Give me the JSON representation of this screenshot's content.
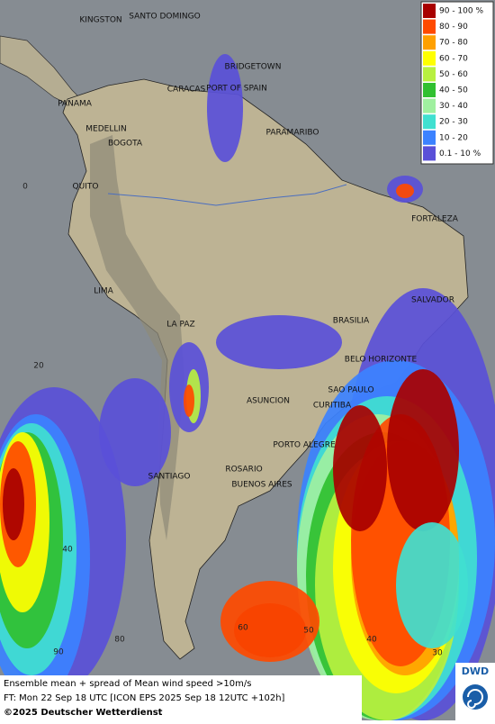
{
  "map": {
    "cities": [
      "KINGSTON",
      "SANTO DOMINGO",
      "BRIDGETOWN",
      "CARACAS",
      "PORT OF SPAIN",
      "PANAMA",
      "MEDELLIN",
      "BOGOTA",
      "PARAMARIBO",
      "QUITO",
      "FORTALEZA",
      "LIMA",
      "SALVADOR",
      "BRASILIA",
      "LA PAZ",
      "BELO HORIZONTE",
      "SAO PAULO",
      "CURITIBA",
      "ASUNCION",
      "PORTO ALEGRE",
      "SANTIAGO",
      "ROSARIO",
      "BUENOS AIRES"
    ],
    "grid_labels": [
      "0",
      "20",
      "40",
      "90",
      "80",
      "60",
      "50",
      "40",
      "30"
    ]
  },
  "legend": {
    "items": [
      {
        "label": "90 - 100 %",
        "color": "#a80000"
      },
      {
        "label": "80 - 90",
        "color": "#ff4a00"
      },
      {
        "label": "70 - 80",
        "color": "#ffa000"
      },
      {
        "label": "60 - 70",
        "color": "#ffff00"
      },
      {
        "label": "50 - 60",
        "color": "#b8f040"
      },
      {
        "label": "40 - 50",
        "color": "#30c030"
      },
      {
        "label": "30 - 40",
        "color": "#a0f0a0"
      },
      {
        "label": "20 - 30",
        "color": "#40e0d0"
      },
      {
        "label": "10 - 20",
        "color": "#3c82ff"
      },
      {
        "label": "0.1 - 10 %",
        "color": "#5a50d8"
      }
    ]
  },
  "footer": {
    "lines": [
      "Ensemble mean + spread of Mean wind speed >10m/s",
      "FT: Mon 22 Sep 18 UTC [ICON EPS 2025 Sep 18 12UTC +102h]",
      "©2025 Deutscher Wetterdienst"
    ]
  },
  "logo": "DWD"
}
